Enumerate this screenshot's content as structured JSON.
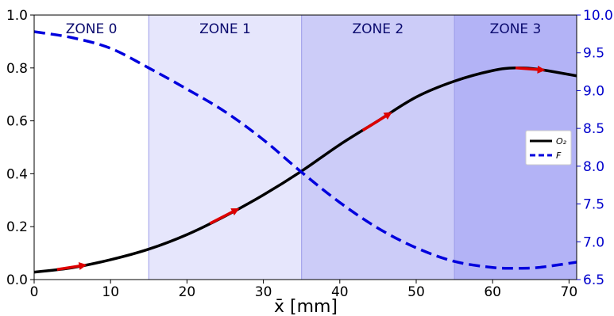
{
  "chart_data": {
    "type": "line",
    "xlabel": "x̄ [mm]",
    "x_range": [
      0,
      71
    ],
    "y_left_range": [
      0.0,
      1.0
    ],
    "y_right_range": [
      6.5,
      10.0
    ],
    "x_ticks": [
      "0",
      "10",
      "20",
      "30",
      "40",
      "50",
      "60",
      "70"
    ],
    "y_left_ticks": [
      "0.0",
      "0.2",
      "0.4",
      "0.6",
      "0.8",
      "1.0"
    ],
    "y_right_ticks": [
      "6.5",
      "7.0",
      "7.5",
      "8.0",
      "8.5",
      "9.0",
      "9.5",
      "10.0"
    ],
    "right_axis_color": "#0000cc",
    "zones": [
      {
        "label": "ZONE 0",
        "x_start": 0,
        "x_end": 15,
        "color": "#ffffff"
      },
      {
        "label": "ZONE 1",
        "x_start": 15,
        "x_end": 35,
        "color": "#e6e6fc"
      },
      {
        "label": "ZONE 2",
        "x_start": 35,
        "x_end": 55,
        "color": "#ccccf8"
      },
      {
        "label": "ZONE 3",
        "x_start": 55,
        "x_end": 71,
        "color": "#b3b3f6"
      }
    ],
    "series": [
      {
        "name": "O₂",
        "axis": "left",
        "style": "solid",
        "color": "#000000",
        "x": [
          0,
          5,
          10,
          15,
          20,
          25,
          30,
          35,
          40,
          45,
          50,
          55,
          60,
          63,
          66,
          71
        ],
        "y": [
          0.028,
          0.045,
          0.075,
          0.115,
          0.17,
          0.24,
          0.32,
          0.41,
          0.51,
          0.6,
          0.69,
          0.75,
          0.79,
          0.8,
          0.795,
          0.77
        ]
      },
      {
        "name": "F",
        "axis": "right",
        "style": "dashed",
        "color": "#0000dd",
        "x": [
          0,
          5,
          10,
          15,
          20,
          25,
          30,
          35,
          40,
          45,
          50,
          55,
          60,
          63,
          66,
          71
        ],
        "y": [
          9.78,
          9.7,
          9.56,
          9.3,
          9.02,
          8.72,
          8.35,
          7.92,
          7.52,
          7.18,
          6.92,
          6.74,
          6.66,
          6.65,
          6.66,
          6.73
        ]
      }
    ],
    "arrows": {
      "color": "#dd0000",
      "series": "O₂",
      "segments": [
        [
          3,
          6.5
        ],
        [
          23,
          26.5
        ],
        [
          43,
          46.5
        ],
        [
          63,
          66.5
        ]
      ]
    },
    "legend": {
      "position": "right",
      "entries": [
        "O₂",
        "F"
      ]
    }
  }
}
